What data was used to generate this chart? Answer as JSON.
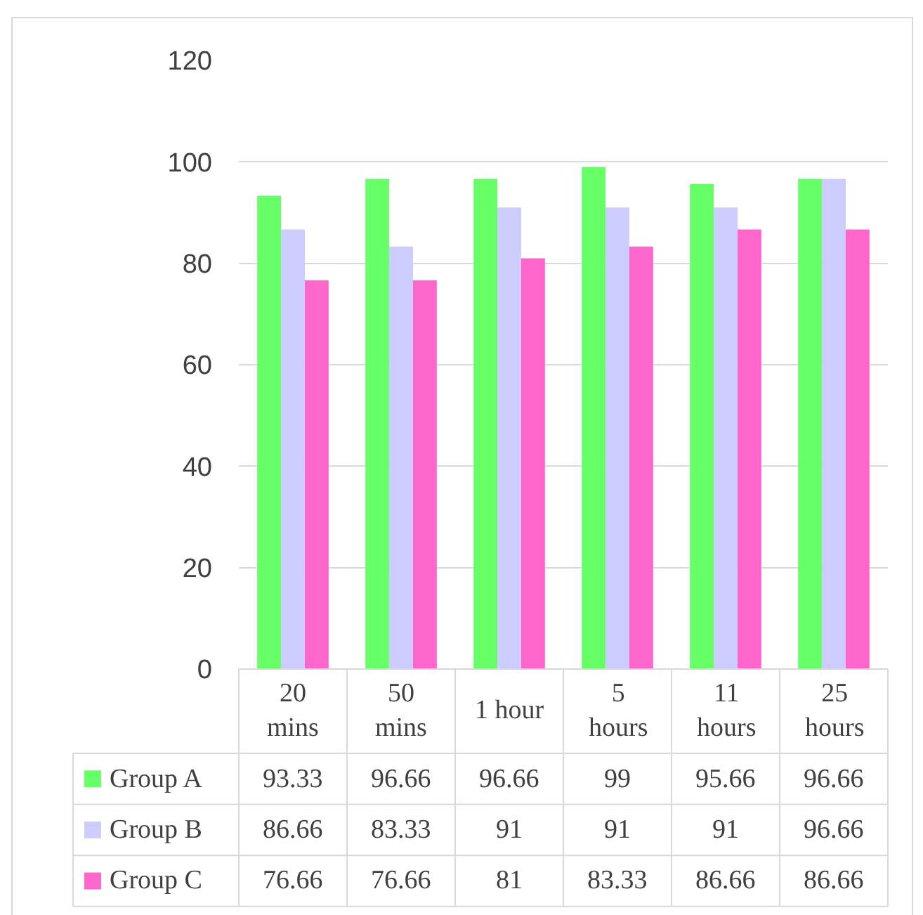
{
  "chart_data": {
    "type": "bar",
    "categories": [
      "20 mins",
      "50 mins",
      "1 hour",
      "5 hours",
      "11 hours",
      "25 hours"
    ],
    "series": [
      {
        "name": "Group A",
        "color": "#66ff66",
        "values": [
          93.33,
          96.66,
          96.66,
          99,
          95.66,
          96.66
        ]
      },
      {
        "name": "Group B",
        "color": "#ccccff",
        "values": [
          86.66,
          83.33,
          91,
          91,
          91,
          96.66
        ]
      },
      {
        "name": "Group C",
        "color": "#ff66cc",
        "values": [
          76.66,
          76.66,
          81,
          83.33,
          86.66,
          86.66
        ]
      }
    ],
    "ylim": [
      0,
      120
    ],
    "yticks": [
      0,
      20,
      40,
      60,
      80,
      100,
      120
    ],
    "grid": "y",
    "legend": "bottom",
    "data_labels": true
  }
}
